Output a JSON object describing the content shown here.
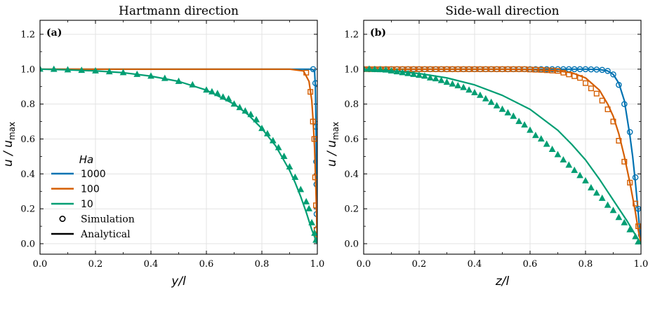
{
  "chart_data": [
    {
      "type": "line",
      "panel_label": "(a)",
      "title": "Hartmann direction",
      "xlabel": "y/l",
      "ylabel": "u / u_max",
      "ylabel_main": "u / u",
      "ylabel_sub": "max",
      "xlim": [
        0,
        1.0
      ],
      "ylim": [
        -0.06,
        1.28
      ],
      "xticks": [
        0.0,
        0.2,
        0.4,
        0.6,
        0.8,
        1.0
      ],
      "yticks": [
        0.0,
        0.2,
        0.4,
        0.6,
        0.8,
        1.0,
        1.2
      ],
      "grid": true,
      "legend": {
        "placement": "lower-left",
        "title": "Ha",
        "entries": [
          "1000",
          "100",
          "10"
        ],
        "style_entries": [
          "Simulation",
          "Analytical"
        ]
      },
      "series": [
        {
          "name": "1000",
          "color": "#0072b2",
          "marker": "circle",
          "analytical": {
            "x": [
              0,
              0.5,
              0.98,
              0.99,
              0.993,
              0.995,
              0.996,
              0.997,
              0.998,
              0.999,
              1.0
            ],
            "y": [
              1.0,
              1.0,
              1.0,
              0.99,
              0.9,
              0.7,
              0.55,
              0.42,
              0.25,
              0.1,
              0.0
            ]
          },
          "simulation": {
            "x": [
              0.985,
              0.993,
              0.995,
              0.9955,
              0.996,
              0.997,
              0.9975,
              0.998,
              0.999
            ],
            "y": [
              1.0,
              0.92,
              0.67,
              0.6,
              0.47,
              0.34,
              0.17,
              0.08,
              0.02
            ]
          }
        },
        {
          "name": "100",
          "color": "#d55e00",
          "marker": "square",
          "analytical": {
            "x": [
              0,
              0.5,
              0.9,
              0.95,
              0.97,
              0.98,
              0.985,
              0.99,
              0.995,
              1.0
            ],
            "y": [
              1.0,
              1.0,
              1.0,
              0.99,
              0.93,
              0.82,
              0.7,
              0.55,
              0.3,
              0.0
            ]
          },
          "simulation": {
            "x": [
              0.96,
              0.975,
              0.984,
              0.989,
              0.992,
              0.995,
              0.997,
              0.999
            ],
            "y": [
              0.98,
              0.87,
              0.7,
              0.6,
              0.38,
              0.22,
              0.08,
              0.03
            ]
          }
        },
        {
          "name": "10",
          "color": "#009e73",
          "marker": "triangle",
          "analytical": {
            "x": [
              0.0,
              0.1,
              0.2,
              0.3,
              0.4,
              0.5,
              0.6,
              0.7,
              0.75,
              0.8,
              0.85,
              0.9,
              0.92,
              0.94,
              0.96,
              0.98,
              0.99,
              1.0
            ],
            "y": [
              1.0,
              0.996,
              0.99,
              0.98,
              0.96,
              0.93,
              0.88,
              0.8,
              0.74,
              0.66,
              0.56,
              0.42,
              0.35,
              0.27,
              0.18,
              0.08,
              0.04,
              0.0
            ]
          },
          "simulation": {
            "x": [
              0.0,
              0.05,
              0.1,
              0.15,
              0.2,
              0.25,
              0.3,
              0.35,
              0.4,
              0.45,
              0.5,
              0.55,
              0.6,
              0.62,
              0.64,
              0.66,
              0.68,
              0.7,
              0.72,
              0.74,
              0.76,
              0.78,
              0.8,
              0.82,
              0.84,
              0.86,
              0.88,
              0.9,
              0.92,
              0.94,
              0.96,
              0.97,
              0.98,
              0.99,
              0.995
            ],
            "y": [
              1.0,
              0.999,
              0.996,
              0.993,
              0.99,
              0.985,
              0.98,
              0.97,
              0.96,
              0.947,
              0.93,
              0.91,
              0.88,
              0.87,
              0.86,
              0.84,
              0.83,
              0.8,
              0.78,
              0.76,
              0.74,
              0.71,
              0.66,
              0.63,
              0.59,
              0.55,
              0.5,
              0.44,
              0.38,
              0.31,
              0.24,
              0.2,
              0.12,
              0.06,
              0.02
            ]
          }
        }
      ]
    },
    {
      "type": "line",
      "panel_label": "(b)",
      "title": "Side-wall direction",
      "xlabel": "z/l",
      "ylabel": "u / u_max",
      "ylabel_main": "u / u",
      "ylabel_sub": "max",
      "xlim": [
        0,
        1.0
      ],
      "ylim": [
        -0.06,
        1.28
      ],
      "xticks": [
        0.0,
        0.2,
        0.4,
        0.6,
        0.8,
        1.0
      ],
      "yticks": [
        0.0,
        0.2,
        0.4,
        0.6,
        0.8,
        1.0,
        1.2
      ],
      "grid": true,
      "series": [
        {
          "name": "1000",
          "color": "#0072b2",
          "marker": "circle",
          "analytical": {
            "x": [
              0,
              0.7,
              0.8,
              0.85,
              0.88,
              0.9,
              0.92,
              0.94,
              0.96,
              0.97,
              0.98,
              0.99,
              1.0
            ],
            "y": [
              1.0,
              1.0,
              1.0,
              0.998,
              0.99,
              0.97,
              0.92,
              0.82,
              0.62,
              0.5,
              0.35,
              0.18,
              0.0
            ]
          },
          "simulation": {
            "x": [
              0.0,
              0.02,
              0.04,
              0.06,
              0.08,
              0.1,
              0.12,
              0.14,
              0.16,
              0.18,
              0.2,
              0.22,
              0.24,
              0.26,
              0.28,
              0.3,
              0.32,
              0.34,
              0.36,
              0.38,
              0.4,
              0.42,
              0.44,
              0.46,
              0.48,
              0.5,
              0.52,
              0.54,
              0.56,
              0.58,
              0.6,
              0.62,
              0.64,
              0.66,
              0.68,
              0.7,
              0.72,
              0.74,
              0.76,
              0.78,
              0.8,
              0.82,
              0.84,
              0.86,
              0.88,
              0.9,
              0.92,
              0.94,
              0.96,
              0.98,
              0.99,
              1.0
            ],
            "y": [
              1.0,
              1.0,
              1.0,
              1.0,
              1.0,
              1.0,
              1.0,
              1.0,
              1.0,
              1.0,
              1.0,
              1.0,
              1.0,
              1.0,
              1.0,
              1.0,
              1.0,
              1.0,
              1.0,
              1.0,
              1.0,
              1.0,
              1.0,
              1.0,
              1.0,
              1.0,
              1.0,
              1.0,
              1.0,
              1.0,
              1.0,
              1.0,
              1.0,
              1.0,
              1.0,
              1.0,
              1.0,
              1.0,
              1.0,
              1.0,
              1.0,
              0.999,
              0.998,
              0.996,
              0.99,
              0.97,
              0.91,
              0.8,
              0.64,
              0.38,
              0.2,
              0.05
            ]
          }
        },
        {
          "name": "100",
          "color": "#d55e00",
          "marker": "square",
          "analytical": {
            "x": [
              0,
              0.5,
              0.6,
              0.7,
              0.75,
              0.8,
              0.85,
              0.88,
              0.9,
              0.92,
              0.94,
              0.96,
              0.98,
              0.99,
              1.0
            ],
            "y": [
              1.0,
              1.0,
              0.998,
              0.99,
              0.98,
              0.95,
              0.88,
              0.8,
              0.73,
              0.63,
              0.5,
              0.35,
              0.18,
              0.08,
              0.0
            ]
          },
          "simulation": {
            "x": [
              0.0,
              0.02,
              0.04,
              0.06,
              0.08,
              0.1,
              0.12,
              0.14,
              0.16,
              0.18,
              0.2,
              0.22,
              0.24,
              0.26,
              0.28,
              0.3,
              0.32,
              0.34,
              0.36,
              0.38,
              0.4,
              0.42,
              0.44,
              0.46,
              0.48,
              0.5,
              0.52,
              0.54,
              0.56,
              0.58,
              0.6,
              0.62,
              0.64,
              0.66,
              0.68,
              0.7,
              0.72,
              0.74,
              0.76,
              0.78,
              0.8,
              0.82,
              0.84,
              0.86,
              0.88,
              0.9,
              0.92,
              0.94,
              0.96,
              0.98,
              0.99
            ],
            "y": [
              1.0,
              1.0,
              1.0,
              1.0,
              1.0,
              1.0,
              1.0,
              1.0,
              1.0,
              1.0,
              1.0,
              1.0,
              1.0,
              1.0,
              1.0,
              1.0,
              1.0,
              1.0,
              1.0,
              1.0,
              1.0,
              1.0,
              1.0,
              1.0,
              1.0,
              1.0,
              1.0,
              1.0,
              1.0,
              1.0,
              0.998,
              0.997,
              0.996,
              0.994,
              0.992,
              0.99,
              0.98,
              0.97,
              0.96,
              0.95,
              0.92,
              0.89,
              0.86,
              0.82,
              0.77,
              0.7,
              0.59,
              0.47,
              0.35,
              0.23,
              0.1
            ]
          }
        },
        {
          "name": "10",
          "color": "#009e73",
          "marker": "triangle",
          "analytical": {
            "x": [
              0.0,
              0.1,
              0.2,
              0.3,
              0.4,
              0.5,
              0.6,
              0.7,
              0.75,
              0.8,
              0.85,
              0.9,
              0.95,
              0.98,
              1.0
            ],
            "y": [
              1.0,
              0.99,
              0.975,
              0.95,
              0.91,
              0.85,
              0.77,
              0.65,
              0.57,
              0.48,
              0.37,
              0.25,
              0.13,
              0.05,
              0.0
            ]
          },
          "simulation": {
            "x": [
              0.0,
              0.02,
              0.04,
              0.06,
              0.08,
              0.1,
              0.12,
              0.14,
              0.16,
              0.18,
              0.2,
              0.22,
              0.24,
              0.26,
              0.28,
              0.3,
              0.32,
              0.34,
              0.36,
              0.38,
              0.4,
              0.42,
              0.44,
              0.46,
              0.48,
              0.5,
              0.52,
              0.54,
              0.56,
              0.58,
              0.6,
              0.62,
              0.64,
              0.66,
              0.68,
              0.7,
              0.72,
              0.74,
              0.76,
              0.78,
              0.8,
              0.82,
              0.84,
              0.86,
              0.88,
              0.9,
              0.92,
              0.94,
              0.96,
              0.98,
              0.99
            ],
            "y": [
              1.0,
              1.0,
              0.998,
              0.997,
              0.995,
              0.99,
              0.985,
              0.98,
              0.975,
              0.97,
              0.965,
              0.96,
              0.95,
              0.945,
              0.935,
              0.925,
              0.915,
              0.905,
              0.895,
              0.88,
              0.865,
              0.85,
              0.83,
              0.81,
              0.79,
              0.77,
              0.75,
              0.73,
              0.7,
              0.68,
              0.65,
              0.62,
              0.6,
              0.57,
              0.54,
              0.51,
              0.48,
              0.45,
              0.42,
              0.39,
              0.36,
              0.32,
              0.29,
              0.26,
              0.22,
              0.19,
              0.15,
              0.12,
              0.08,
              0.04,
              0.01
            ]
          }
        }
      ]
    }
  ]
}
